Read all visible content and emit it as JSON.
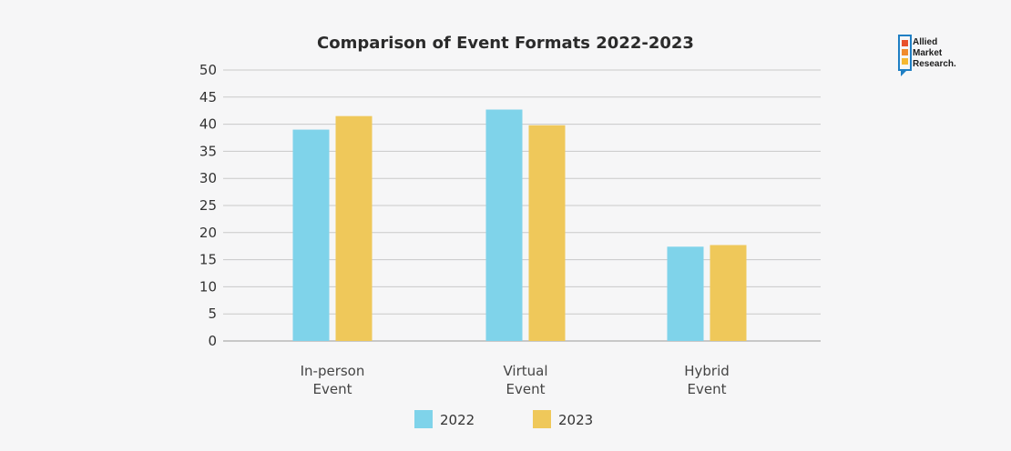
{
  "chart_data": {
    "type": "bar",
    "title": "Comparison of Event Formats 2022-2023",
    "categories": [
      [
        "In-person",
        "Event"
      ],
      [
        "Virtual",
        "Event"
      ],
      [
        "Hybrid",
        "Event"
      ]
    ],
    "series": [
      {
        "name": "2022",
        "values": [
          39,
          42.7,
          17.4
        ],
        "color": "#7fd3ea"
      },
      {
        "name": "2023",
        "values": [
          41.5,
          39.8,
          17.7
        ],
        "color": "#efc85a"
      }
    ],
    "ylim": [
      0,
      50
    ],
    "yticks": [
      0,
      5,
      10,
      15,
      20,
      25,
      30,
      35,
      40,
      45,
      50
    ],
    "grid": true,
    "legend": "bottom",
    "xlabel": "",
    "ylabel": ""
  },
  "logo": {
    "lines": [
      "Allied",
      "Market",
      "Research."
    ],
    "colors": [
      "#e8502b",
      "#f08a2c",
      "#f5b731"
    ],
    "frame_color": "#1f7fc4"
  }
}
